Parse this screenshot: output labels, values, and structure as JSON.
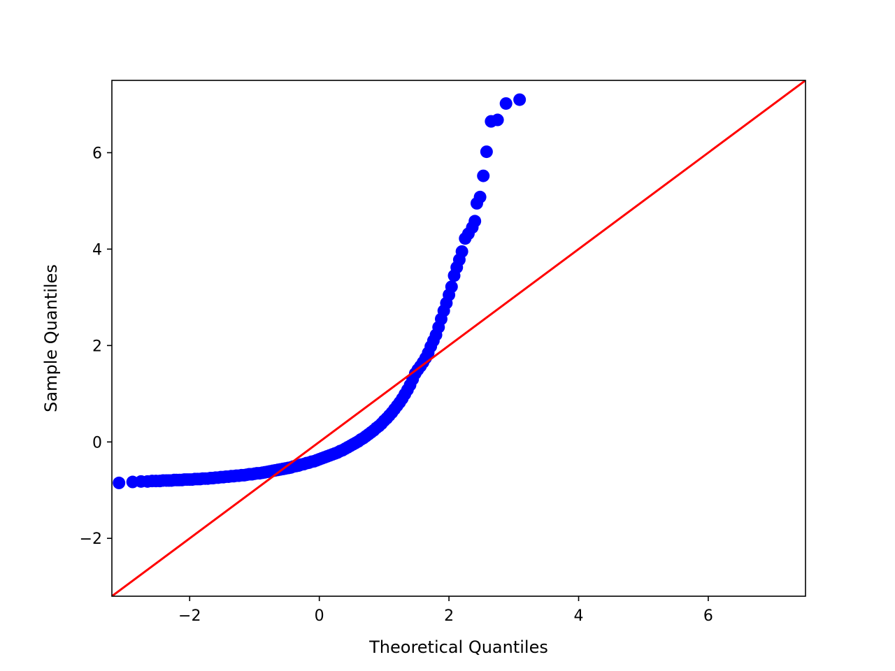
{
  "chart_data": {
    "type": "scatter",
    "title": "",
    "xlabel": "Theoretical Quantiles",
    "ylabel": "Sample Quantiles",
    "xlim": [
      -3.2,
      7.5
    ],
    "ylim": [
      -3.2,
      7.5
    ],
    "xticks": [
      -2,
      0,
      2,
      4,
      6
    ],
    "yticks": [
      -2,
      0,
      2,
      4,
      6
    ],
    "xtick_labels": [
      "−2",
      "0",
      "2",
      "4",
      "6"
    ],
    "ytick_labels": [
      "−2",
      "0",
      "2",
      "4",
      "6"
    ],
    "grid": false,
    "marker_color": "#0000ff",
    "reference_line": {
      "type": "45-degree",
      "color": "#ff0000"
    },
    "series": [
      {
        "points": [
          [
            -3.09,
            -0.85
          ],
          [
            -2.88,
            -0.83
          ],
          [
            -2.75,
            -0.82
          ],
          [
            -2.65,
            -0.82
          ],
          [
            -2.58,
            -0.81
          ],
          [
            -2.52,
            -0.81
          ],
          [
            -2.46,
            -0.81
          ],
          [
            -2.41,
            -0.8
          ],
          [
            -2.36,
            -0.8
          ],
          [
            -2.32,
            -0.8
          ],
          [
            -2.28,
            -0.8
          ],
          [
            -2.24,
            -0.79
          ],
          [
            -2.2,
            -0.79
          ],
          [
            -2.16,
            -0.79
          ],
          [
            -2.12,
            -0.79
          ],
          [
            -2.08,
            -0.78
          ],
          [
            -2.04,
            -0.78
          ],
          [
            -2.0,
            -0.78
          ],
          [
            -1.96,
            -0.78
          ],
          [
            -1.92,
            -0.77
          ],
          [
            -1.88,
            -0.77
          ],
          [
            -1.84,
            -0.77
          ],
          [
            -1.8,
            -0.76
          ],
          [
            -1.76,
            -0.76
          ],
          [
            -1.72,
            -0.76
          ],
          [
            -1.68,
            -0.75
          ],
          [
            -1.64,
            -0.75
          ],
          [
            -1.6,
            -0.74
          ],
          [
            -1.56,
            -0.74
          ],
          [
            -1.52,
            -0.73
          ],
          [
            -1.48,
            -0.73
          ],
          [
            -1.44,
            -0.72
          ],
          [
            -1.4,
            -0.72
          ],
          [
            -1.36,
            -0.71
          ],
          [
            -1.32,
            -0.71
          ],
          [
            -1.28,
            -0.7
          ],
          [
            -1.24,
            -0.7
          ],
          [
            -1.2,
            -0.69
          ],
          [
            -1.16,
            -0.69
          ],
          [
            -1.12,
            -0.68
          ],
          [
            -1.08,
            -0.67
          ],
          [
            -1.04,
            -0.67
          ],
          [
            -1.0,
            -0.66
          ],
          [
            -0.96,
            -0.65
          ],
          [
            -0.92,
            -0.65
          ],
          [
            -0.88,
            -0.64
          ],
          [
            -0.84,
            -0.63
          ],
          [
            -0.8,
            -0.62
          ],
          [
            -0.76,
            -0.61
          ],
          [
            -0.72,
            -0.6
          ],
          [
            -0.68,
            -0.59
          ],
          [
            -0.64,
            -0.58
          ],
          [
            -0.6,
            -0.57
          ],
          [
            -0.56,
            -0.56
          ],
          [
            -0.52,
            -0.55
          ],
          [
            -0.48,
            -0.54
          ],
          [
            -0.44,
            -0.53
          ],
          [
            -0.4,
            -0.51
          ],
          [
            -0.36,
            -0.5
          ],
          [
            -0.32,
            -0.49
          ],
          [
            -0.28,
            -0.47
          ],
          [
            -0.24,
            -0.46
          ],
          [
            -0.2,
            -0.44
          ],
          [
            -0.16,
            -0.43
          ],
          [
            -0.12,
            -0.41
          ],
          [
            -0.08,
            -0.4
          ],
          [
            -0.04,
            -0.38
          ],
          [
            0.0,
            -0.36
          ],
          [
            0.04,
            -0.34
          ],
          [
            0.08,
            -0.32
          ],
          [
            0.12,
            -0.3
          ],
          [
            0.16,
            -0.28
          ],
          [
            0.2,
            -0.26
          ],
          [
            0.24,
            -0.24
          ],
          [
            0.28,
            -0.22
          ],
          [
            0.32,
            -0.19
          ],
          [
            0.36,
            -0.17
          ],
          [
            0.4,
            -0.14
          ],
          [
            0.44,
            -0.11
          ],
          [
            0.48,
            -0.08
          ],
          [
            0.52,
            -0.05
          ],
          [
            0.56,
            -0.02
          ],
          [
            0.6,
            0.01
          ],
          [
            0.64,
            0.05
          ],
          [
            0.68,
            0.08
          ],
          [
            0.72,
            0.12
          ],
          [
            0.76,
            0.16
          ],
          [
            0.8,
            0.2
          ],
          [
            0.84,
            0.24
          ],
          [
            0.88,
            0.29
          ],
          [
            0.92,
            0.33
          ],
          [
            0.96,
            0.38
          ],
          [
            1.0,
            0.44
          ],
          [
            1.04,
            0.49
          ],
          [
            1.08,
            0.55
          ],
          [
            1.12,
            0.61
          ],
          [
            1.16,
            0.68
          ],
          [
            1.2,
            0.75
          ],
          [
            1.24,
            0.82
          ],
          [
            1.28,
            0.9
          ],
          [
            1.32,
            0.99
          ],
          [
            1.36,
            1.08
          ],
          [
            1.4,
            1.18
          ],
          [
            1.44,
            1.3
          ],
          [
            1.48,
            1.42
          ],
          [
            1.52,
            1.5
          ],
          [
            1.56,
            1.57
          ],
          [
            1.6,
            1.65
          ],
          [
            1.64,
            1.74
          ],
          [
            1.68,
            1.85
          ],
          [
            1.72,
            1.98
          ],
          [
            1.76,
            2.1
          ],
          [
            1.8,
            2.22
          ],
          [
            1.84,
            2.38
          ],
          [
            1.88,
            2.55
          ],
          [
            1.92,
            2.72
          ],
          [
            1.96,
            2.88
          ],
          [
            2.0,
            3.05
          ],
          [
            2.04,
            3.22
          ],
          [
            2.08,
            3.45
          ],
          [
            2.12,
            3.62
          ],
          [
            2.16,
            3.78
          ],
          [
            2.2,
            3.95
          ],
          [
            2.25,
            4.22
          ],
          [
            2.3,
            4.32
          ],
          [
            2.36,
            4.45
          ],
          [
            2.4,
            4.58
          ],
          [
            2.43,
            4.95
          ],
          [
            2.48,
            5.08
          ],
          [
            2.53,
            5.52
          ],
          [
            2.58,
            6.02
          ],
          [
            2.65,
            6.65
          ],
          [
            2.75,
            6.68
          ],
          [
            2.88,
            7.02
          ],
          [
            3.09,
            7.1
          ]
        ]
      }
    ]
  }
}
